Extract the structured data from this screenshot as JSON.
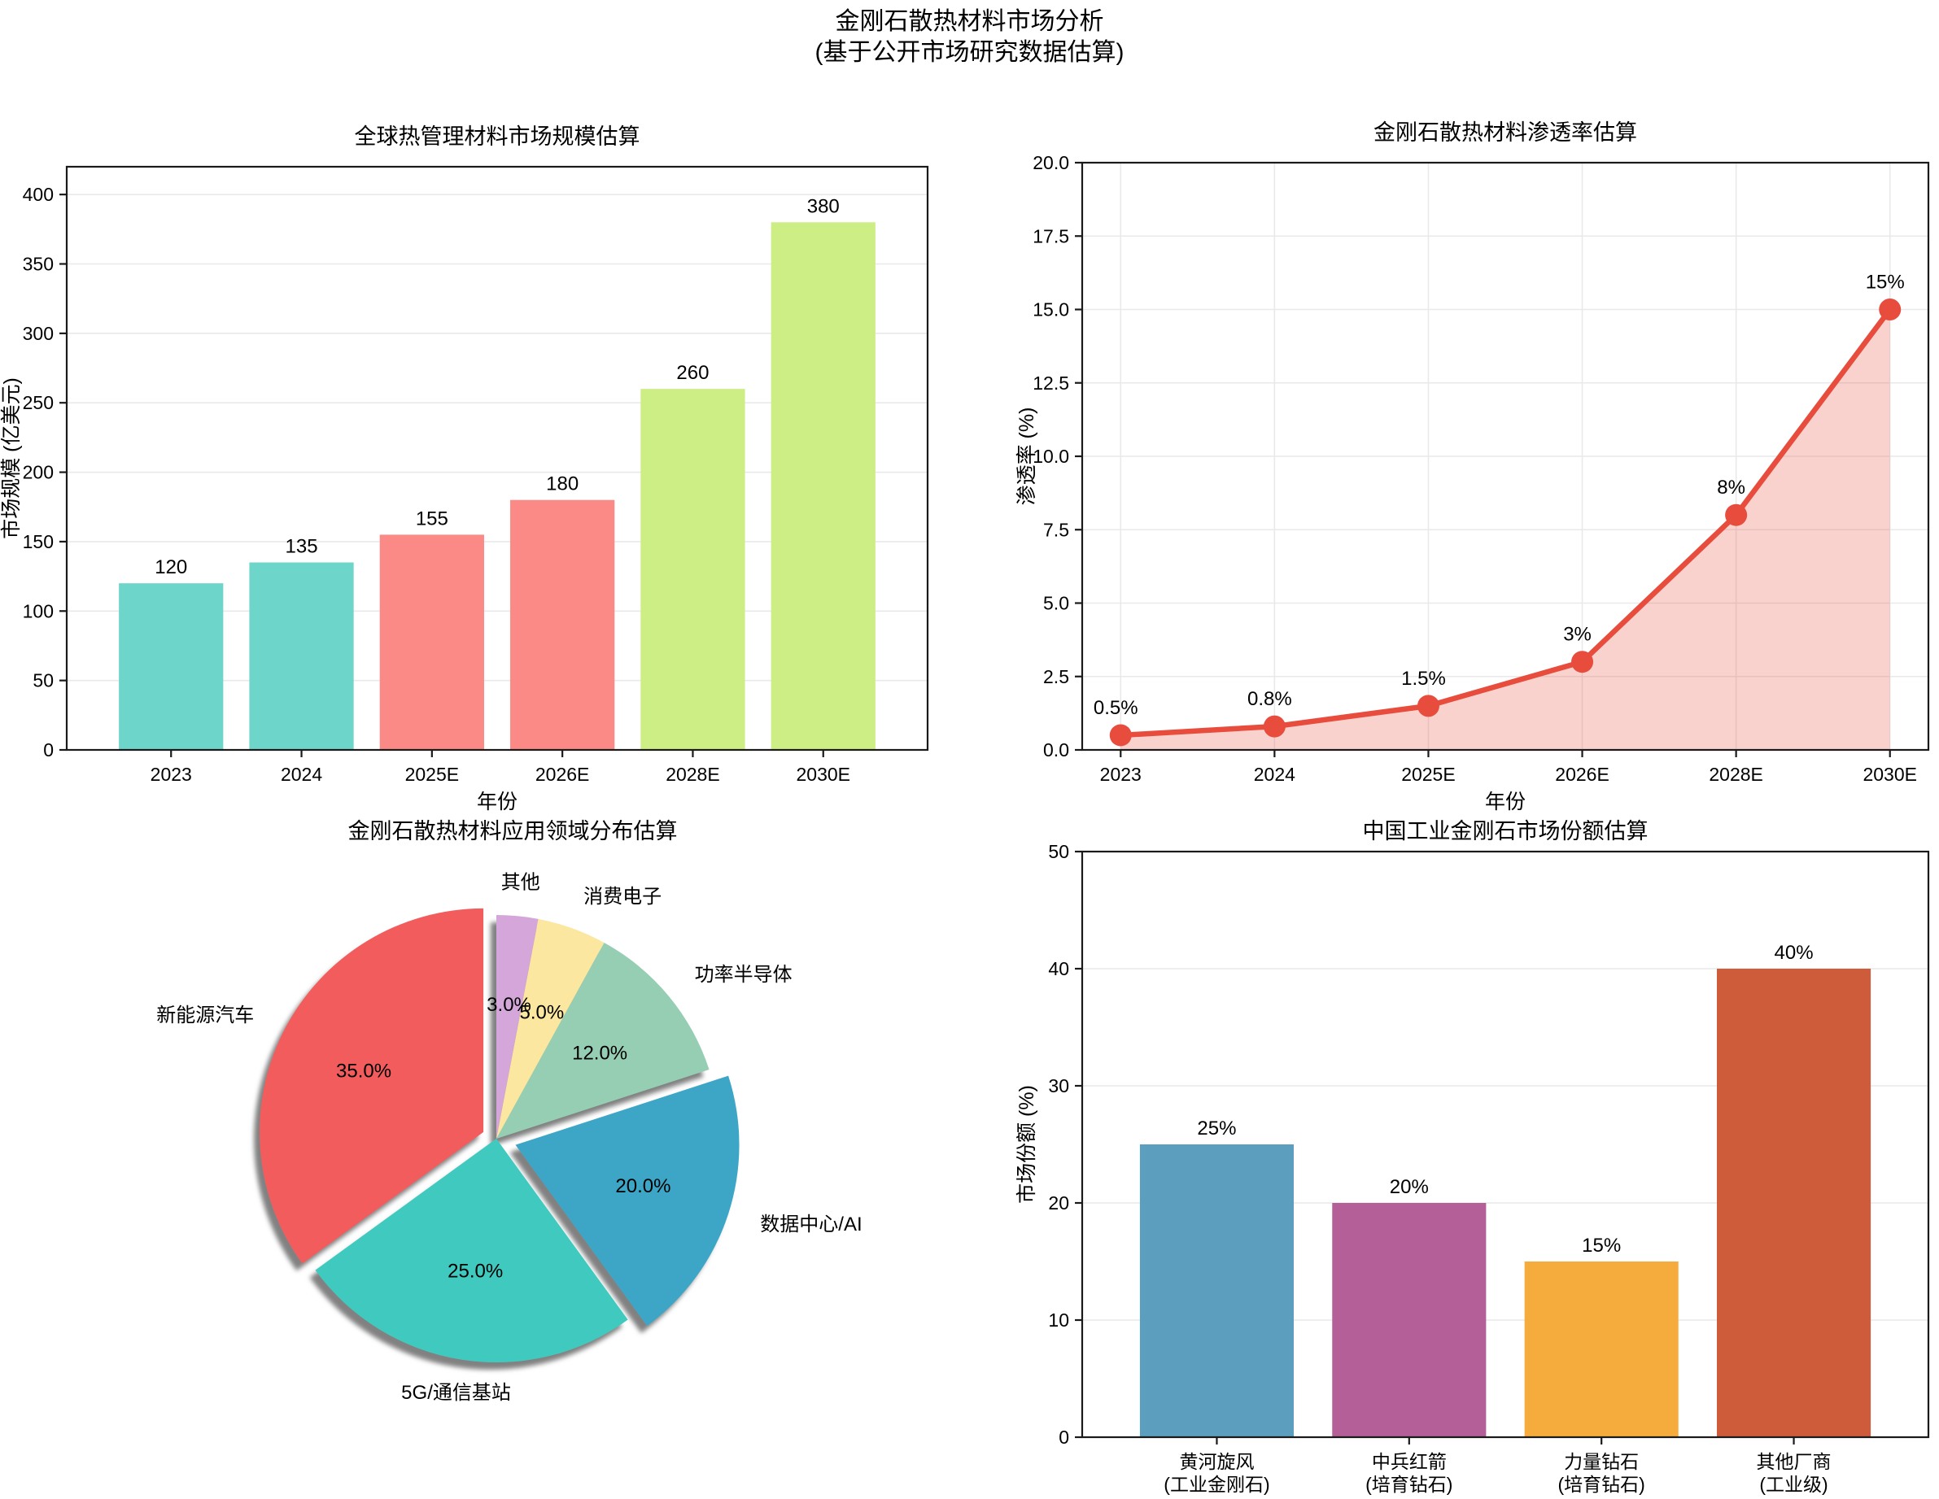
{
  "suptitle": {
    "line1": "金刚石散热材料市场分析",
    "line2": "(基于公开市场研究数据估算)"
  },
  "chart_data": [
    {
      "id": "global-thermal-market",
      "type": "bar",
      "title": "全球热管理材料市场规模估算",
      "xlabel": "年份",
      "ylabel": "市场规模 (亿美元)",
      "categories": [
        "2023",
        "2024",
        "2025E",
        "2026E",
        "2028E",
        "2030E"
      ],
      "values": [
        120,
        135,
        155,
        180,
        260,
        380
      ],
      "value_labels": [
        "120",
        "135",
        "155",
        "180",
        "260",
        "380"
      ],
      "bar_colors": [
        "#6ED5CB",
        "#6ED5CB",
        "#FB8A86",
        "#FB8A86",
        "#CDEE85",
        "#CDEE85"
      ],
      "ylim": [
        0,
        420
      ],
      "ytick_step": 50,
      "grid": "horizontal"
    },
    {
      "id": "penetration-rate",
      "type": "line",
      "title": "金刚石散热材料渗透率估算",
      "xlabel": "年份",
      "ylabel": "渗透率 (%)",
      "x_labels": [
        "2023",
        "2024",
        "2025E",
        "2026E",
        "2028E",
        "2030E"
      ],
      "values": [
        0.5,
        0.8,
        1.5,
        3,
        8,
        15
      ],
      "point_labels": [
        "0.5%",
        "0.8%",
        "1.5%",
        "3%",
        "8%",
        "15%"
      ],
      "ylim": [
        0,
        20
      ],
      "ytick_step": 2.5,
      "line_color": "#E74C3C",
      "fill_opacity": 0.25,
      "grid": "both"
    },
    {
      "id": "application-distribution",
      "type": "pie",
      "title": "金刚石散热材料应用领域分布估算",
      "start_angle": 90,
      "direction": "counterclockwise",
      "slices": [
        {
          "label": "新能源汽车",
          "value": 35,
          "pct_label": "35.0%",
          "color": "#F25C5C",
          "explode": 0.065
        },
        {
          "label": "5G/通信基站",
          "value": 25,
          "pct_label": "25.0%",
          "color": "#40C9BE",
          "explode": 0
        },
        {
          "label": "数据中心/AI",
          "value": 20,
          "pct_label": "20.0%",
          "color": "#3EA6C6",
          "explode": 0.09
        },
        {
          "label": "功率半导体",
          "value": 12,
          "pct_label": "12.0%",
          "color": "#96CEB4",
          "explode": 0
        },
        {
          "label": "消费电子",
          "value": 5,
          "pct_label": "5.0%",
          "color": "#FBE79F",
          "explode": 0
        },
        {
          "label": "其他",
          "value": 3,
          "pct_label": "3.0%",
          "color": "#D5A6D9",
          "explode": 0
        }
      ]
    },
    {
      "id": "china-market-share",
      "type": "bar",
      "title": "中国工业金刚石市场份额估算",
      "xlabel": "",
      "ylabel": "市场份额 (%)",
      "categories": [
        [
          "黄河旋风",
          "(工业金刚石)"
        ],
        [
          "中兵红箭",
          "(培育钻石)"
        ],
        [
          "力量钻石",
          "(培育钻石)"
        ],
        [
          "其他厂商",
          "(工业级)"
        ]
      ],
      "values": [
        25,
        20,
        15,
        40
      ],
      "value_labels": [
        "25%",
        "20%",
        "15%",
        "40%"
      ],
      "bar_colors": [
        "#5B9EBE",
        "#B45F97",
        "#F6AC3C",
        "#CE5C3B"
      ],
      "ylim": [
        0,
        50
      ],
      "ytick_step": 10,
      "grid": "horizontal"
    }
  ]
}
